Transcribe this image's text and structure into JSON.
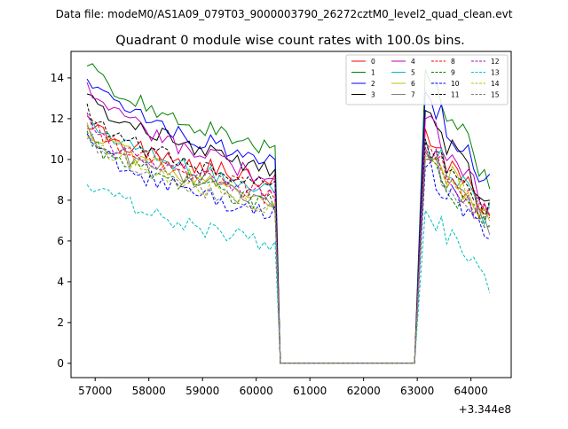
{
  "chart_data": {
    "type": "line",
    "suptitle": "Data file: modeM0/AS1A09_079T03_9000003790_26272cztM0_level2_quad_clean.evt",
    "title": "Quadrant 0 module wise count rates with 100.0s bins.",
    "xlabel": "",
    "ylabel": "",
    "x_offset_label": "+3.344e8",
    "xlim": [
      56550,
      64750
    ],
    "ylim": [
      -0.7,
      15.3
    ],
    "x_ticks": [
      57000,
      58000,
      59000,
      60000,
      61000,
      62000,
      63000,
      64000
    ],
    "y_ticks": [
      0,
      2,
      4,
      6,
      8,
      10,
      12,
      14
    ],
    "grid": false,
    "legend_position": "top-right",
    "legend_columns": 4,
    "series": [
      {
        "name": "0",
        "color": "#ff0000",
        "dash": "solid",
        "start": 11.9,
        "plateau": 8.9,
        "post_peak": 11.5,
        "post_end": 7.0
      },
      {
        "name": "1",
        "color": "#008000",
        "dash": "solid",
        "start": 14.9,
        "plateau": 10.4,
        "post_peak": 14.4,
        "post_end": 8.8
      },
      {
        "name": "2",
        "color": "#0000ff",
        "dash": "solid",
        "start": 14.2,
        "plateau": 9.8,
        "post_peak": 13.3,
        "post_end": 8.6
      },
      {
        "name": "3",
        "color": "#000000",
        "dash": "solid",
        "start": 13.4,
        "plateau": 9.4,
        "post_peak": 12.4,
        "post_end": 7.8
      },
      {
        "name": "4",
        "color": "#bf00bf",
        "dash": "solid",
        "start": 13.9,
        "plateau": 9.0,
        "post_peak": 12.0,
        "post_end": 7.6
      },
      {
        "name": "5",
        "color": "#00bfbf",
        "dash": "solid",
        "start": 12.2,
        "plateau": 8.4,
        "post_peak": 11.0,
        "post_end": 7.2
      },
      {
        "name": "6",
        "color": "#bfbf00",
        "dash": "solid",
        "start": 11.8,
        "plateau": 8.0,
        "post_peak": 10.6,
        "post_end": 6.8
      },
      {
        "name": "7",
        "color": "#808080",
        "dash": "solid",
        "start": 11.6,
        "plateau": 7.9,
        "post_peak": 10.4,
        "post_end": 6.6
      },
      {
        "name": "8",
        "color": "#ff0000",
        "dash": "dashed",
        "start": 12.0,
        "plateau": 8.3,
        "post_peak": 10.8,
        "post_end": 7.0
      },
      {
        "name": "9",
        "color": "#008000",
        "dash": "dashed",
        "start": 11.2,
        "plateau": 7.8,
        "post_peak": 10.0,
        "post_end": 6.6
      },
      {
        "name": "10",
        "color": "#0000ff",
        "dash": "dashed",
        "start": 11.0,
        "plateau": 7.3,
        "post_peak": 9.6,
        "post_end": 6.4
      },
      {
        "name": "11",
        "color": "#000000",
        "dash": "dashed",
        "start": 12.4,
        "plateau": 8.6,
        "post_peak": 11.0,
        "post_end": 7.4
      },
      {
        "name": "12",
        "color": "#bf00bf",
        "dash": "dashed",
        "start": 11.9,
        "plateau": 8.1,
        "post_peak": 10.6,
        "post_end": 7.0
      },
      {
        "name": "13",
        "color": "#00bfbf",
        "dash": "dashed",
        "start": 9.2,
        "plateau": 5.8,
        "post_peak": 7.5,
        "post_end": 3.8
      },
      {
        "name": "14",
        "color": "#bfbf00",
        "dash": "dashed",
        "start": 11.5,
        "plateau": 7.7,
        "post_peak": 10.2,
        "post_end": 6.8
      },
      {
        "name": "15",
        "color": "#808080",
        "dash": "dashed",
        "start": 11.3,
        "plateau": 7.5,
        "post_peak": 10.0,
        "post_end": 6.6
      }
    ],
    "time_grid": {
      "start": 56850,
      "step": 100,
      "gap_start": 60450,
      "gap_end": 62950,
      "post_peak_time": 63150,
      "end": 64350
    }
  }
}
